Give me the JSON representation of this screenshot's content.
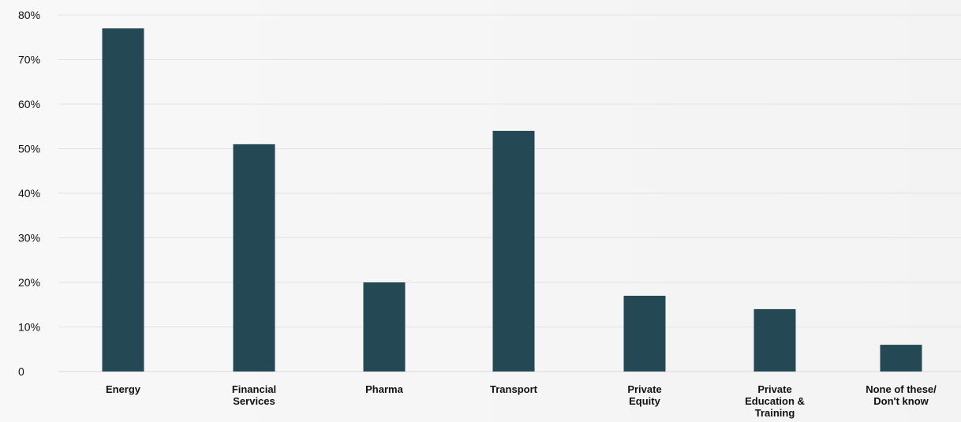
{
  "chart_data": {
    "type": "bar",
    "categories": [
      [
        "Energy"
      ],
      [
        "Financial",
        "Services"
      ],
      [
        "Pharma"
      ],
      [
        "Transport"
      ],
      [
        "Private",
        "Equity"
      ],
      [
        "Private",
        "Education &",
        "Training"
      ],
      [
        "None of these/",
        "Don't know"
      ]
    ],
    "values": [
      77,
      51,
      20,
      54,
      17,
      14,
      6
    ],
    "ylim": [
      0,
      80
    ],
    "yticks": [
      0,
      10,
      20,
      30,
      40,
      50,
      60,
      70,
      80
    ],
    "ytick_labels": [
      "0",
      "10%",
      "20%",
      "30%",
      "40%",
      "50%",
      "60%",
      "70%",
      "80%"
    ],
    "grid": true,
    "legend": "none",
    "bar_color": "#254855",
    "title": "",
    "xlabel": "",
    "ylabel": ""
  }
}
